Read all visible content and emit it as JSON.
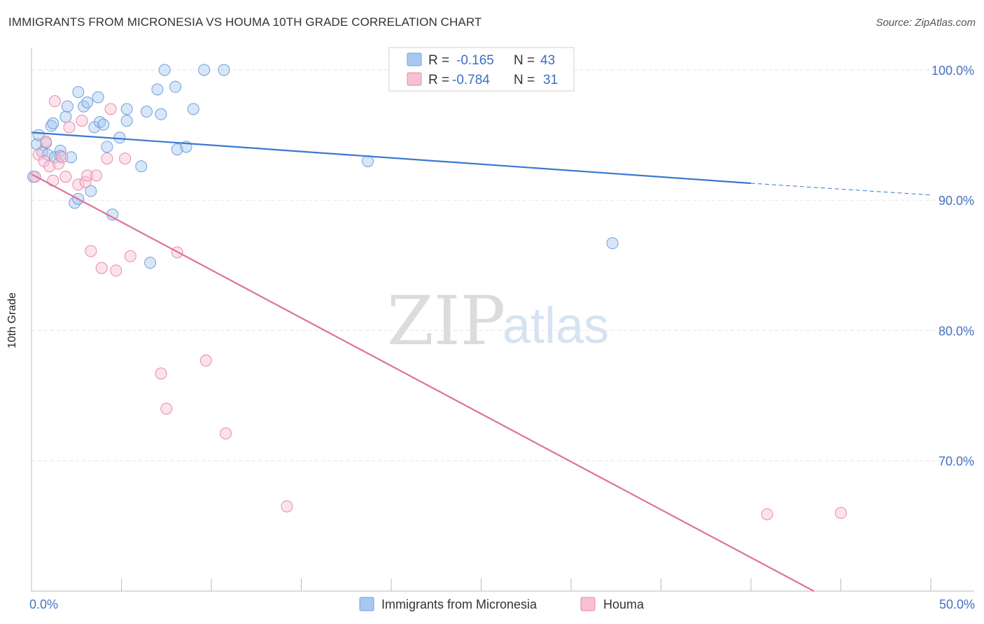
{
  "header": {
    "title": "IMMIGRANTS FROM MICRONESIA VS HOUMA 10TH GRADE CORRELATION CHART",
    "source": "Source: ZipAtlas.com"
  },
  "watermark": {
    "zip": "ZIP",
    "atlas": "atlas"
  },
  "legend": {
    "rows": [
      {
        "r_label": "R =",
        "r_value": "-0.165",
        "n_label": "N =",
        "n_value": "43",
        "color": "#a9c8f0",
        "stroke": "#6fa0dc"
      },
      {
        "r_label": "R =",
        "r_value": "-0.784",
        "n_label": "N =",
        "n_value": "31",
        "color": "#f8c0d2",
        "stroke": "#e88aa8"
      }
    ]
  },
  "bottom_legend": {
    "items": [
      {
        "label": "Immigrants from Micronesia",
        "color": "#a9c8f0",
        "stroke": "#6fa0dc"
      },
      {
        "label": "Houma",
        "color": "#f8c0d2",
        "stroke": "#e88aa8"
      }
    ]
  },
  "colors": {
    "blue_line": "#3a78d0",
    "pink_line": "#e07099",
    "blue_fill": "rgba(169,200,240,0.45)",
    "blue_stroke": "#6fa0dc",
    "pink_fill": "rgba(248,192,210,0.45)",
    "pink_stroke": "#e88aa8",
    "axis_text": "#4472c4",
    "grid": "#e3e3e3"
  },
  "chart_data": {
    "type": "scatter",
    "title": "IMMIGRANTS FROM MICRONESIA VS HOUMA 10TH GRADE CORRELATION CHART",
    "xlabel": "",
    "ylabel": "10th Grade",
    "xlim": [
      0,
      50
    ],
    "ylim": [
      60,
      101.5
    ],
    "x_tick_labels": [
      "0.0%",
      "50.0%"
    ],
    "y_ticks": [
      70,
      80,
      90,
      100
    ],
    "y_tick_labels": [
      "70.0%",
      "80.0%",
      "90.0%",
      "100.0%"
    ],
    "grid": "horizontal dashed",
    "legend_position": "top-center",
    "series": [
      {
        "name": "Immigrants from Micronesia",
        "r": -0.165,
        "n": 43,
        "points": [
          [
            0.3,
            94.3
          ],
          [
            0.4,
            95.0
          ],
          [
            0.6,
            93.7
          ],
          [
            0.8,
            94.4
          ],
          [
            0.9,
            93.5
          ],
          [
            1.1,
            95.7
          ],
          [
            1.2,
            95.9
          ],
          [
            1.3,
            93.3
          ],
          [
            1.6,
            93.8
          ],
          [
            1.6,
            93.4
          ],
          [
            1.9,
            96.4
          ],
          [
            2.0,
            97.2
          ],
          [
            2.2,
            93.3
          ],
          [
            2.4,
            89.8
          ],
          [
            2.6,
            98.3
          ],
          [
            2.6,
            90.1
          ],
          [
            2.9,
            97.2
          ],
          [
            3.1,
            97.5
          ],
          [
            3.3,
            90.7
          ],
          [
            3.5,
            95.6
          ],
          [
            3.7,
            97.9
          ],
          [
            3.8,
            96.0
          ],
          [
            4.0,
            95.8
          ],
          [
            4.2,
            94.1
          ],
          [
            4.5,
            88.9
          ],
          [
            4.9,
            94.8
          ],
          [
            5.3,
            97.0
          ],
          [
            5.3,
            96.1
          ],
          [
            6.1,
            92.6
          ],
          [
            6.4,
            96.8
          ],
          [
            6.6,
            85.2
          ],
          [
            7.0,
            98.5
          ],
          [
            7.2,
            96.6
          ],
          [
            7.4,
            100.0
          ],
          [
            8.0,
            98.7
          ],
          [
            8.1,
            93.9
          ],
          [
            8.6,
            94.1
          ],
          [
            9.0,
            97.0
          ],
          [
            9.6,
            100.0
          ],
          [
            10.7,
            100.0
          ],
          [
            18.7,
            93.0
          ],
          [
            32.3,
            86.7
          ],
          [
            0.1,
            91.8
          ]
        ],
        "trendline": {
          "x": [
            0,
            40
          ],
          "y": [
            95.2,
            91.3
          ],
          "dashed_extension": {
            "x": [
              40,
              50
            ],
            "y": [
              91.3,
              90.4
            ]
          }
        }
      },
      {
        "name": "Houma",
        "r": -0.784,
        "n": 31,
        "points": [
          [
            0.2,
            91.8
          ],
          [
            0.4,
            93.5
          ],
          [
            0.7,
            93.0
          ],
          [
            0.8,
            94.5
          ],
          [
            1.0,
            92.6
          ],
          [
            1.2,
            91.5
          ],
          [
            1.3,
            97.6
          ],
          [
            1.5,
            92.8
          ],
          [
            1.7,
            93.3
          ],
          [
            1.9,
            91.8
          ],
          [
            2.1,
            95.6
          ],
          [
            2.6,
            91.2
          ],
          [
            2.8,
            96.1
          ],
          [
            3.0,
            91.4
          ],
          [
            3.1,
            91.9
          ],
          [
            3.3,
            86.1
          ],
          [
            3.6,
            91.9
          ],
          [
            3.9,
            84.8
          ],
          [
            4.2,
            93.2
          ],
          [
            4.4,
            97.0
          ],
          [
            4.7,
            84.6
          ],
          [
            5.2,
            93.2
          ],
          [
            5.5,
            85.7
          ],
          [
            7.2,
            76.7
          ],
          [
            7.5,
            74.0
          ],
          [
            8.1,
            86.0
          ],
          [
            9.7,
            77.7
          ],
          [
            10.8,
            72.1
          ],
          [
            14.2,
            66.5
          ],
          [
            40.9,
            65.9
          ],
          [
            45.0,
            66.0
          ]
        ],
        "trendline": {
          "x": [
            0,
            43.5
          ],
          "y": [
            92.0,
            60.0
          ]
        }
      }
    ]
  }
}
